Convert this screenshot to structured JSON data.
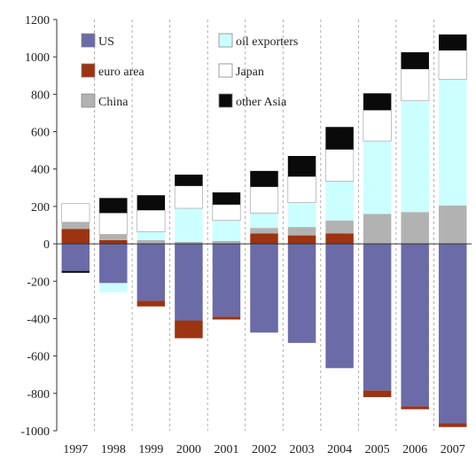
{
  "chart_data": {
    "type": "bar",
    "stacked": true,
    "categories": [
      "1997",
      "1998",
      "1999",
      "2000",
      "2001",
      "2002",
      "2003",
      "2004",
      "2005",
      "2006",
      "2007"
    ],
    "ylim": [
      -1000,
      1200
    ],
    "yticks": [
      "1200",
      "1000",
      "800",
      "600",
      "400",
      "200",
      "0",
      "-200",
      "-400",
      "-600",
      "-800",
      "-1000"
    ],
    "grid": "vertical dashed",
    "legend_position": "top-left",
    "series": [
      {
        "name": "US",
        "color": "#6b6ba8",
        "values": [
          -145,
          -210,
          -305,
          -410,
          -390,
          -475,
          -530,
          -665,
          -785,
          -870,
          -960
        ]
      },
      {
        "name": "euro area",
        "color": "#9c3311",
        "values": [
          80,
          20,
          -30,
          -95,
          -15,
          55,
          45,
          55,
          -35,
          -15,
          -20
        ]
      },
      {
        "name": "China",
        "color": "#b2b2b2",
        "values": [
          35,
          30,
          20,
          10,
          15,
          30,
          45,
          70,
          160,
          170,
          205
        ]
      },
      {
        "name": "oil exporters",
        "color": "#ccffff",
        "values": [
          0,
          -50,
          45,
          180,
          110,
          80,
          130,
          210,
          390,
          595,
          675
        ]
      },
      {
        "name": "Japan",
        "color": "#ffffff",
        "values": [
          100,
          115,
          115,
          120,
          85,
          140,
          140,
          170,
          165,
          170,
          155
        ]
      },
      {
        "name": "other Asia",
        "color": "#0a0a0a",
        "values": [
          -10,
          80,
          80,
          60,
          65,
          85,
          110,
          120,
          90,
          90,
          85
        ]
      }
    ]
  }
}
